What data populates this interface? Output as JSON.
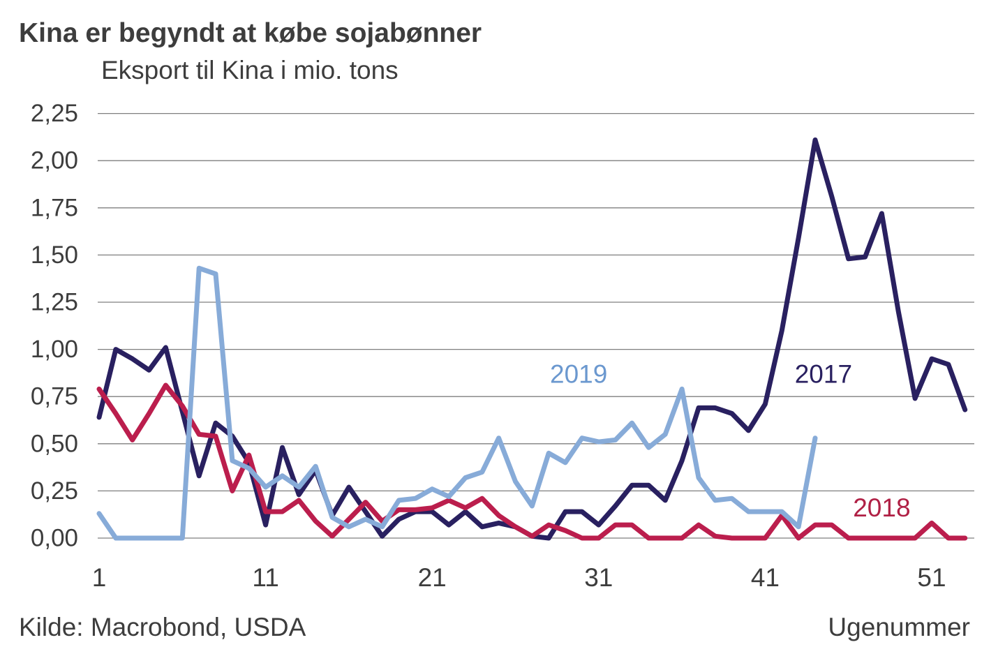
{
  "header": {
    "title": "Kina er begyndt at købe sojabønner",
    "subtitle": "Eksport til Kina i mio. tons"
  },
  "footer": {
    "source_label": "Kilde: Macrobond, USDA",
    "xaxis_label": "Ugenummer"
  },
  "colors": {
    "text": "#3d3d3d",
    "gridline": "#7f7f7f",
    "series_2017": "#292060",
    "series_2018": "#bb1e4d",
    "series_2019": "#87abd8",
    "label_2019_text": "#6b98cf"
  },
  "chart_data": {
    "type": "line",
    "title": "Kina er begyndt at købe sojabønner",
    "subtitle": "Eksport til Kina i mio. tons",
    "xlabel": "Ugenummer",
    "ylabel": "Eksport til Kina i mio. tons",
    "grid": true,
    "x_axis": {
      "tick_weeks": [
        1,
        11,
        21,
        31,
        41,
        51
      ],
      "tick_labels": [
        "1",
        "11",
        "21",
        "31",
        "41",
        "51"
      ],
      "min_week": 1,
      "max_week": 53
    },
    "y_axis": {
      "tick_values": [
        2.25,
        2.0,
        1.75,
        1.5,
        1.25,
        1.0,
        0.75,
        0.5,
        0.25,
        0.0
      ],
      "tick_labels": [
        "2,25",
        "2,00",
        "1,75",
        "1,50",
        "1,25",
        "1,00",
        "0,75",
        "0,50",
        "0,25",
        "0,00"
      ],
      "min": 0.0,
      "max": 2.25
    },
    "series": [
      {
        "name": "2017",
        "color": "#292060",
        "label_color": "#292060",
        "label_anchor": {
          "week": 44.5,
          "value": 0.87
        },
        "start_week": 1,
        "values": [
          0.64,
          1.0,
          0.95,
          0.89,
          1.01,
          0.67,
          0.33,
          0.61,
          0.54,
          0.4,
          0.07,
          0.48,
          0.23,
          0.36,
          0.12,
          0.27,
          0.14,
          0.01,
          0.1,
          0.14,
          0.14,
          0.07,
          0.14,
          0.06,
          0.08,
          0.06,
          0.01,
          0.0,
          0.14,
          0.14,
          0.07,
          0.17,
          0.28,
          0.28,
          0.2,
          0.41,
          0.69,
          0.69,
          0.66,
          0.57,
          0.71,
          1.1,
          1.59,
          2.11,
          1.81,
          1.48,
          1.49,
          1.72,
          1.2,
          0.74,
          0.95,
          0.92,
          0.68
        ]
      },
      {
        "name": "2018",
        "color": "#bb1e4d",
        "label_color": "#b02045",
        "label_anchor": {
          "week": 48.0,
          "value": 0.16
        },
        "start_week": 1,
        "values": [
          0.79,
          0.66,
          0.52,
          0.66,
          0.81,
          0.7,
          0.55,
          0.54,
          0.25,
          0.44,
          0.14,
          0.14,
          0.2,
          0.09,
          0.01,
          0.1,
          0.19,
          0.09,
          0.15,
          0.15,
          0.16,
          0.2,
          0.16,
          0.21,
          0.12,
          0.06,
          0.01,
          0.07,
          0.04,
          0.0,
          0.0,
          0.07,
          0.07,
          0.0,
          0.0,
          0.0,
          0.07,
          0.01,
          0.0,
          0.0,
          0.0,
          0.12,
          0.0,
          0.07,
          0.07,
          0.0,
          0.0,
          0.0,
          0.0,
          0.0,
          0.08,
          0.0,
          0.0
        ]
      },
      {
        "name": "2019",
        "color": "#87abd8",
        "label_color": "#6b98cf",
        "label_anchor": {
          "week": 29.8,
          "value": 0.87
        },
        "start_week": 1,
        "values": [
          0.13,
          0.0,
          0.0,
          0.0,
          0.0,
          0.0,
          1.43,
          1.4,
          0.41,
          0.37,
          0.27,
          0.33,
          0.27,
          0.38,
          0.11,
          0.06,
          0.1,
          0.06,
          0.2,
          0.21,
          0.26,
          0.22,
          0.32,
          0.35,
          0.53,
          0.3,
          0.17,
          0.45,
          0.4,
          0.53,
          0.51,
          0.52,
          0.61,
          0.48,
          0.55,
          0.79,
          0.32,
          0.2,
          0.21,
          0.14,
          0.14,
          0.14,
          0.06,
          0.53
        ]
      }
    ]
  }
}
